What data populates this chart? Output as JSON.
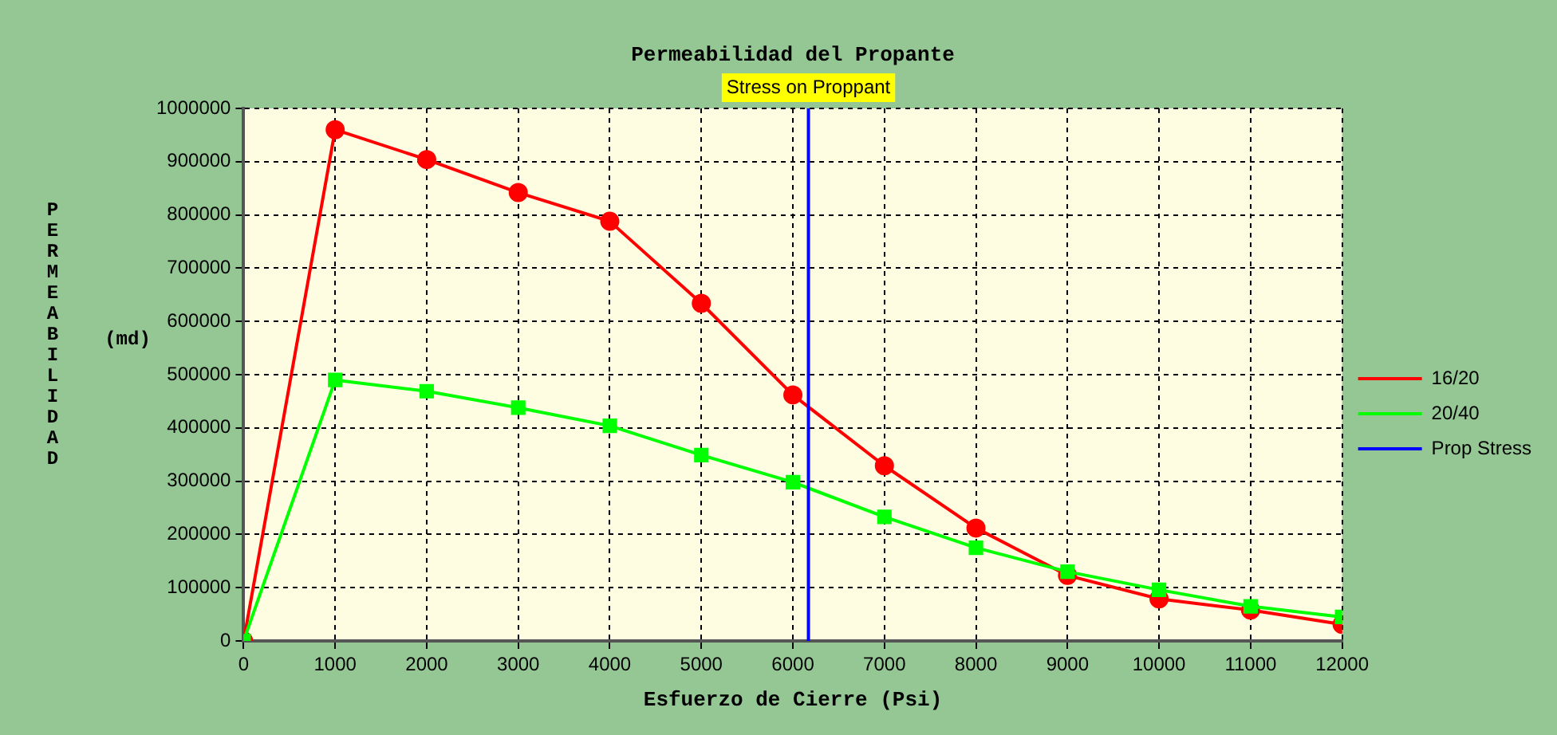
{
  "chart_data": {
    "type": "line",
    "title": "Permeabilidad del Propante",
    "xlabel": "Esfuerzo de Cierre (Psi)",
    "ylabel": "PERMEABILIDAD",
    "x": [
      0,
      1000,
      2000,
      3000,
      4000,
      5000,
      6000,
      7000,
      8000,
      9000,
      10000,
      11000,
      12000
    ],
    "series": [
      {
        "name": "16/20",
        "color": "#ff0000",
        "marker": "circle",
        "values": [
          0,
          960000,
          904000,
          842000,
          788000,
          634000,
          462000,
          329000,
          212000,
          123000,
          79000,
          58000,
          31000
        ]
      },
      {
        "name": "20/40",
        "color": "#00ff00",
        "marker": "square",
        "values": [
          0,
          490000,
          469000,
          438000,
          404000,
          349000,
          298000,
          233000,
          175000,
          130000,
          96000,
          65000,
          45000
        ]
      },
      {
        "name": "Prop Stress",
        "color": "#0000ff",
        "marker": "none",
        "x": [
          6170,
          6170
        ],
        "values": [
          0,
          1000000
        ]
      }
    ],
    "annotations": [
      "(md)",
      {
        "text": "Stress on Proppant",
        "x": 6170,
        "y": 1000000
      }
    ],
    "xlim": [
      0,
      12000
    ],
    "xticks": [
      0,
      1000,
      2000,
      3000,
      4000,
      5000,
      6000,
      7000,
      8000,
      9000,
      10000,
      11000,
      12000
    ],
    "ylim": [
      0,
      1000000
    ],
    "yticks": [
      0,
      100000,
      200000,
      300000,
      400000,
      500000,
      600000,
      700000,
      800000,
      900000,
      1000000
    ],
    "grid": true,
    "legend": "right"
  }
}
